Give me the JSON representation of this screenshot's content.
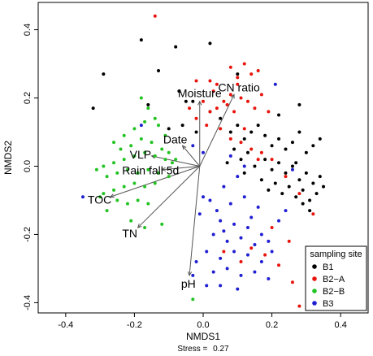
{
  "chart_data": {
    "type": "scatter",
    "xlabel": "NMDS1",
    "ylabel": "NMDS2",
    "stress_label": "Stress = ",
    "stress_value": "0.27",
    "xlim": [
      -0.48,
      0.48
    ],
    "ylim": [
      -0.43,
      0.48
    ],
    "x_ticks": [
      -0.4,
      -0.2,
      0.0,
      0.2,
      0.4
    ],
    "x_tick_labels": [
      "-0.4",
      "-0.2",
      "0.0",
      "0.2",
      "0.4"
    ],
    "y_ticks": [
      -0.4,
      -0.2,
      0.0,
      0.2,
      0.4
    ],
    "y_tick_labels": [
      "-0.4",
      "-0.2",
      "0.0",
      "0.2",
      "0.4"
    ],
    "grid": false,
    "legend": {
      "title": "sampling site",
      "position": "bottom-right"
    },
    "series": [
      {
        "name": "B1",
        "color": "#000000",
        "points": [
          [
            -0.32,
            0.17
          ],
          [
            -0.29,
            0.27
          ],
          [
            -0.18,
            0.37
          ],
          [
            -0.16,
            0.18
          ],
          [
            -0.13,
            0.28
          ],
          [
            -0.08,
            0.35
          ],
          [
            -0.05,
            0.19
          ],
          [
            -0.03,
            0.19
          ],
          [
            -0.02,
            0.1
          ],
          [
            -0.07,
            0.22
          ],
          [
            -0.1,
            0.11
          ],
          [
            -0.06,
            0.12
          ],
          [
            0.02,
            0.16
          ],
          [
            0.05,
            0.14
          ],
          [
            0.08,
            0.1
          ],
          [
            0.1,
            0.12
          ],
          [
            0.12,
            0.08
          ],
          [
            0.14,
            0.1
          ],
          [
            0.16,
            0.12
          ],
          [
            0.18,
            0.09
          ],
          [
            0.2,
            0.06
          ],
          [
            0.22,
            0.08
          ],
          [
            0.24,
            0.05
          ],
          [
            0.26,
            0.07
          ],
          [
            0.28,
            0.1
          ],
          [
            0.3,
            0.04
          ],
          [
            0.32,
            0.06
          ],
          [
            0.34,
            0.08
          ],
          [
            0.15,
            0.0
          ],
          [
            0.18,
            0.02
          ],
          [
            0.2,
            -0.01
          ],
          [
            0.22,
            0.01
          ],
          [
            0.24,
            -0.02
          ],
          [
            0.26,
            0.0
          ],
          [
            0.28,
            -0.04
          ],
          [
            0.3,
            -0.02
          ],
          [
            0.32,
            -0.05
          ],
          [
            0.34,
            -0.03
          ],
          [
            0.17,
            -0.04
          ],
          [
            0.19,
            -0.07
          ],
          [
            0.21,
            -0.05
          ],
          [
            0.23,
            -0.08
          ],
          [
            0.25,
            -0.06
          ],
          [
            0.27,
            -0.09
          ],
          [
            0.29,
            -0.07
          ],
          [
            0.31,
            -0.1
          ],
          [
            0.33,
            -0.08
          ],
          [
            0.35,
            -0.06
          ],
          [
            0.13,
            0.04
          ],
          [
            0.11,
            0.02
          ],
          [
            0.09,
            0.05
          ],
          [
            0.07,
            0.01
          ],
          [
            0.12,
            -0.02
          ],
          [
            0.29,
            -0.11
          ],
          [
            0.31,
            -0.13
          ],
          [
            0.02,
            0.36
          ],
          [
            0.1,
            0.27
          ],
          [
            0.28,
            0.18
          ],
          [
            0.22,
            0.15
          ],
          [
            0.27,
            0.01
          ]
        ]
      },
      {
        "name": "B2−A",
        "color": "#e8140c",
        "points": [
          [
            -0.14,
            0.44
          ],
          [
            -0.02,
            0.25
          ],
          [
            0.02,
            0.25
          ],
          [
            0.04,
            0.24
          ],
          [
            0.08,
            0.29
          ],
          [
            0.1,
            0.26
          ],
          [
            0.12,
            0.3
          ],
          [
            0.14,
            0.27
          ],
          [
            0.16,
            0.28
          ],
          [
            0.1,
            0.24
          ],
          [
            0.08,
            0.21
          ],
          [
            0.06,
            0.19
          ],
          [
            0.04,
            0.17
          ],
          [
            0.02,
            0.16
          ],
          [
            0.0,
            0.19
          ],
          [
            -0.02,
            0.14
          ],
          [
            0.07,
            0.18
          ],
          [
            0.11,
            0.2
          ],
          [
            0.13,
            0.19
          ],
          [
            0.15,
            0.17
          ],
          [
            0.17,
            0.21
          ],
          [
            0.19,
            0.16
          ],
          [
            0.09,
            0.16
          ],
          [
            -0.04,
            0.17
          ],
          [
            0.01,
            0.12
          ],
          [
            0.05,
            0.11
          ],
          [
            0.08,
            0.08
          ],
          [
            0.11,
            0.07
          ],
          [
            0.14,
            0.05
          ],
          [
            0.17,
            0.04
          ],
          [
            0.2,
            0.02
          ],
          [
            0.24,
            -0.03
          ],
          [
            0.28,
            -0.08
          ],
          [
            0.32,
            -0.14
          ],
          [
            0.25,
            -0.22
          ],
          [
            0.2,
            -0.18
          ],
          [
            0.06,
            -0.25
          ],
          [
            0.11,
            -0.28
          ],
          [
            0.14,
            -0.24
          ],
          [
            0.18,
            -0.26
          ],
          [
            0.22,
            -0.29
          ],
          [
            0.26,
            -0.34
          ],
          [
            0.28,
            -0.41
          ],
          [
            0.03,
            0.22
          ],
          [
            0.12,
            0.11
          ],
          [
            0.16,
            0.02
          ]
        ]
      },
      {
        "name": "B2−B",
        "color": "#22c322",
        "points": [
          [
            -0.18,
            0.2
          ],
          [
            -0.16,
            0.17
          ],
          [
            -0.14,
            0.14
          ],
          [
            -0.17,
            0.13
          ],
          [
            -0.2,
            0.11
          ],
          [
            -0.23,
            0.09
          ],
          [
            -0.26,
            0.07
          ],
          [
            -0.24,
            0.05
          ],
          [
            -0.21,
            0.06
          ],
          [
            -0.18,
            0.08
          ],
          [
            -0.15,
            0.07
          ],
          [
            -0.12,
            0.05
          ],
          [
            -0.1,
            0.04
          ],
          [
            -0.08,
            0.02
          ],
          [
            -0.11,
            0.02
          ],
          [
            -0.14,
            0.03
          ],
          [
            -0.17,
            0.04
          ],
          [
            -0.2,
            0.03
          ],
          [
            -0.23,
            0.02
          ],
          [
            -0.26,
            0.01
          ],
          [
            -0.29,
            0.0
          ],
          [
            -0.31,
            -0.01
          ],
          [
            -0.28,
            -0.03
          ],
          [
            -0.25,
            -0.02
          ],
          [
            -0.22,
            -0.01
          ],
          [
            -0.19,
            -0.02
          ],
          [
            -0.16,
            -0.01
          ],
          [
            -0.13,
            -0.02
          ],
          [
            -0.1,
            -0.03
          ],
          [
            -0.14,
            -0.05
          ],
          [
            -0.17,
            -0.06
          ],
          [
            -0.2,
            -0.05
          ],
          [
            -0.23,
            -0.06
          ],
          [
            -0.26,
            -0.07
          ],
          [
            -0.29,
            -0.08
          ],
          [
            -0.25,
            -0.1
          ],
          [
            -0.22,
            -0.11
          ],
          [
            -0.19,
            -0.1
          ],
          [
            -0.16,
            -0.11
          ],
          [
            -0.28,
            -0.13
          ],
          [
            -0.21,
            -0.16
          ],
          [
            -0.17,
            -0.18
          ],
          [
            -0.12,
            -0.17
          ],
          [
            -0.3,
            -0.09
          ],
          [
            -0.11,
            0.09
          ],
          [
            -0.13,
            0.12
          ],
          [
            -0.03,
            -0.39
          ],
          [
            -0.09,
            0.01
          ]
        ]
      },
      {
        "name": "B3",
        "color": "#1f1fd2",
        "points": [
          [
            -0.35,
            -0.09
          ],
          [
            -0.18,
            0.12
          ],
          [
            -0.03,
            0.06
          ],
          [
            0.0,
            0.04
          ],
          [
            0.08,
            0.03
          ],
          [
            0.12,
            0.0
          ],
          [
            0.1,
            -0.03
          ],
          [
            0.06,
            -0.06
          ],
          [
            0.02,
            -0.1
          ],
          [
            -0.01,
            -0.14
          ],
          [
            0.04,
            -0.13
          ],
          [
            0.08,
            -0.11
          ],
          [
            0.12,
            -0.09
          ],
          [
            0.16,
            -0.12
          ],
          [
            0.05,
            -0.16
          ],
          [
            0.09,
            -0.17
          ],
          [
            0.13,
            -0.18
          ],
          [
            0.17,
            -0.2
          ],
          [
            0.03,
            -0.2
          ],
          [
            0.07,
            -0.22
          ],
          [
            0.11,
            -0.21
          ],
          [
            0.15,
            -0.23
          ],
          [
            0.19,
            -0.22
          ],
          [
            0.01,
            -0.25
          ],
          [
            0.05,
            -0.27
          ],
          [
            0.09,
            -0.25
          ],
          [
            0.13,
            -0.26
          ],
          [
            0.17,
            -0.28
          ],
          [
            -0.02,
            -0.28
          ],
          [
            0.03,
            -0.31
          ],
          [
            0.07,
            -0.3
          ],
          [
            0.11,
            -0.32
          ],
          [
            0.15,
            -0.31
          ],
          [
            0.19,
            -0.33
          ],
          [
            -0.03,
            -0.32
          ],
          [
            0.01,
            -0.35
          ],
          [
            0.05,
            -0.35
          ],
          [
            0.21,
            0.24
          ],
          [
            0.26,
            -0.01
          ],
          [
            0.2,
            -0.25
          ],
          [
            0.14,
            -0.15
          ],
          [
            0.1,
            -0.36
          ],
          [
            0.22,
            -0.16
          ],
          [
            0.06,
            -0.19
          ],
          [
            0.0,
            -0.09
          ],
          [
            0.24,
            -0.13
          ]
        ]
      }
    ],
    "vectors": [
      {
        "label": "Moisture",
        "end": [
          -0.01,
          0.19
        ]
      },
      {
        "label": "CN ratio",
        "end": [
          0.09,
          0.21
        ]
      },
      {
        "label": "Date",
        "end": [
          -0.06,
          0.06
        ]
      },
      {
        "label": "VLP",
        "end": [
          -0.15,
          0.03
        ]
      },
      {
        "label": "Rain fall 5d",
        "end": [
          -0.12,
          -0.01
        ]
      },
      {
        "label": "TOC",
        "end": [
          -0.27,
          -0.09
        ]
      },
      {
        "label": "TN",
        "end": [
          -0.19,
          -0.18
        ]
      },
      {
        "label": "pH",
        "end": [
          -0.04,
          -0.32
        ]
      }
    ],
    "vector_origin": [
      -0.01,
      0.0
    ]
  }
}
